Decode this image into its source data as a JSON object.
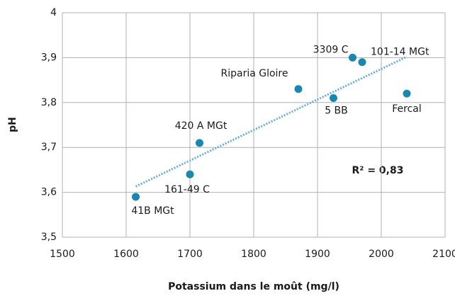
{
  "chart_data": {
    "type": "scatter",
    "x_label": "Potassium dans le moût (mg/l)",
    "y_label": "pH",
    "series": [
      {
        "color": "#1a87b0",
        "labels": [
          "41B MGt",
          "161-49 C",
          "420 A MGt",
          "Riparia Gloire",
          "5 BB",
          "3309 C",
          "101-14 MGt",
          "Fercal"
        ],
        "x": [
          1615,
          1700,
          1715,
          1870,
          1925,
          1955,
          1970,
          2040
        ],
        "values": [
          3.59,
          3.64,
          3.71,
          3.83,
          3.81,
          3.9,
          3.89,
          3.82
        ]
      }
    ],
    "trendline": {
      "color": "#6aaed6",
      "x": [
        1615,
        2040
      ],
      "values": [
        3.613,
        3.902
      ]
    },
    "annotation": "R² = 0,83",
    "xlim": [
      1500,
      2100
    ],
    "xticks": [
      1500,
      1600,
      1700,
      1800,
      1900,
      2000,
      2100
    ],
    "ylim": [
      3.5,
      4
    ],
    "yticks": [
      {
        "value": 3.5,
        "label": "3,5"
      },
      {
        "value": 3.6,
        "label": "3,6"
      },
      {
        "value": 3.7,
        "label": "3,7"
      },
      {
        "value": 3.8,
        "label": "3,8"
      },
      {
        "value": 3.9,
        "label": "3,9"
      },
      4
    ],
    "grid": true
  }
}
